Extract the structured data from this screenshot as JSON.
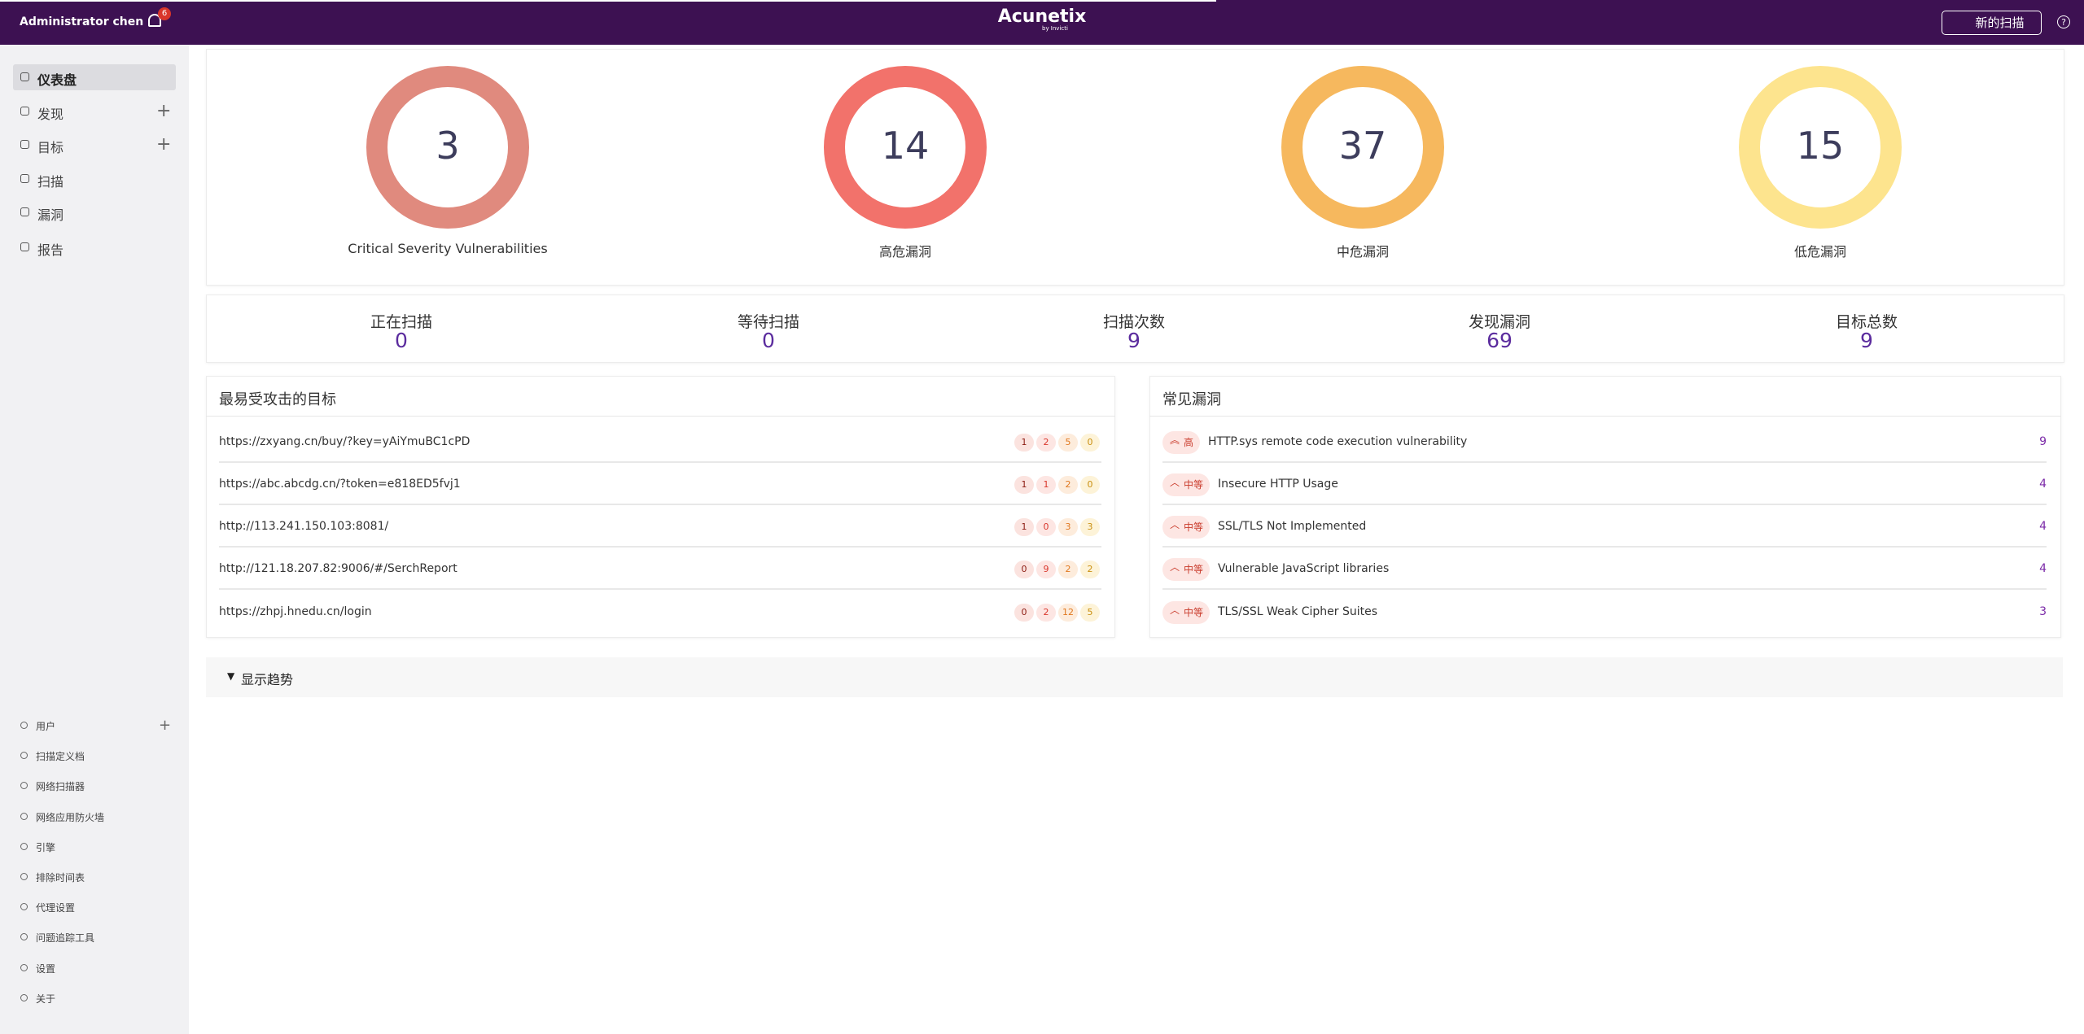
{
  "header": {
    "user": "Administrator chen",
    "notifications": 6,
    "logo": "Acunetix",
    "logo_sub": "by Invicti",
    "new_scan": "新的扫描"
  },
  "nav": {
    "main": [
      "仪表盘",
      "发现",
      "目标",
      "扫描",
      "漏洞",
      "报告"
    ],
    "settings": [
      "用户",
      "扫描定义档",
      "网络扫描器",
      "网络应用防火墙",
      "引擎",
      "排除时间表",
      "代理设置",
      "问题追踪工具",
      "设置",
      "关于"
    ]
  },
  "severity": [
    {
      "value": 3,
      "label": "Critical Severity Vulnerabilities",
      "color": "#e08a7e"
    },
    {
      "value": 14,
      "label": "高危漏洞",
      "color": "#f2726b"
    },
    {
      "value": 37,
      "label": "中危漏洞",
      "color": "#f6b85e"
    },
    {
      "value": 15,
      "label": "低危漏洞",
      "color": "#fde48e"
    }
  ],
  "stats": [
    {
      "label": "正在扫描",
      "value": 0
    },
    {
      "label": "等待扫描",
      "value": 0
    },
    {
      "label": "扫描次数",
      "value": 9
    },
    {
      "label": "发现漏洞",
      "value": 69
    },
    {
      "label": "目标总数",
      "value": 9
    }
  ],
  "targets": {
    "title": "最易受攻击的目标",
    "rows": [
      {
        "url": "https://zxyang.cn/buy/?key=yAiYmuBC1cPD",
        "counts": [
          1,
          2,
          5,
          0
        ]
      },
      {
        "url": "https://abc.abcdg.cn/?token=e818ED5fvj1",
        "counts": [
          1,
          1,
          2,
          0
        ]
      },
      {
        "url": "http://113.241.150.103:8081/",
        "counts": [
          1,
          0,
          3,
          3
        ]
      },
      {
        "url": "http://121.18.207.82:9006/#/SerchReport",
        "counts": [
          0,
          9,
          2,
          2
        ]
      },
      {
        "url": "https://zhpj.hnedu.cn/login",
        "counts": [
          0,
          2,
          12,
          5
        ]
      }
    ]
  },
  "vulns": {
    "title": "常见漏洞",
    "rows": [
      {
        "severity": "高",
        "name": "HTTP.sys remote code execution vulnerability",
        "count": 9
      },
      {
        "severity": "中等",
        "name": "Insecure HTTP Usage",
        "count": 4
      },
      {
        "severity": "中等",
        "name": "SSL/TLS Not Implemented",
        "count": 4
      },
      {
        "severity": "中等",
        "name": "Vulnerable JavaScript libraries",
        "count": 4
      },
      {
        "severity": "中等",
        "name": "TLS/SSL Weak Cipher Suites",
        "count": 3
      }
    ]
  },
  "trends": "显示趋势"
}
